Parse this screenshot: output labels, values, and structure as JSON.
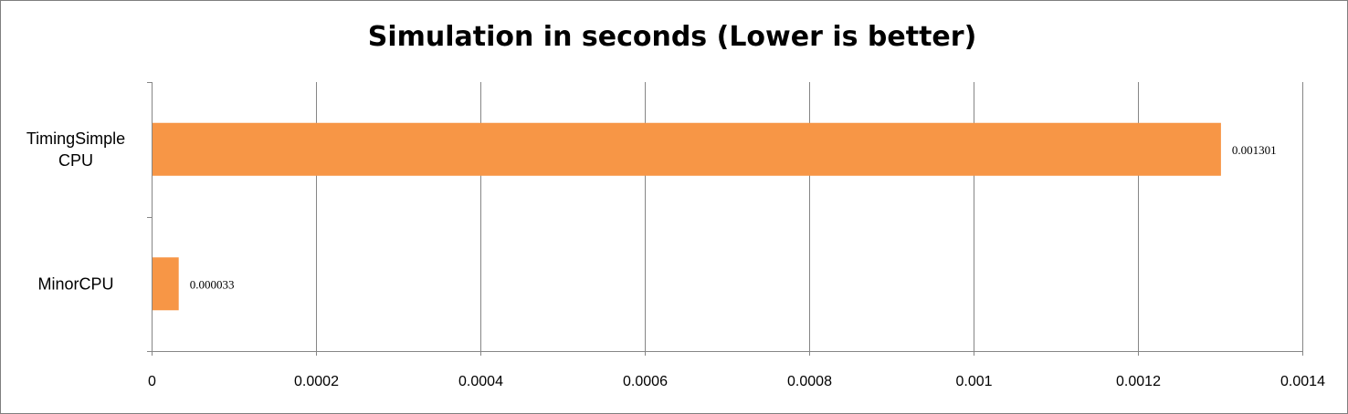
{
  "chart_data": {
    "type": "bar",
    "orientation": "horizontal",
    "title": "Simulation in seconds (Lower is better)",
    "xlabel": "",
    "ylabel": "",
    "categories": [
      [
        "TimingSimple",
        "CPU"
      ],
      [
        "MinorCPU"
      ]
    ],
    "values": [
      0.001301,
      3.3e-05
    ],
    "data_labels": [
      "0.001301",
      "0.000033"
    ],
    "xlim": [
      0,
      0.0014
    ],
    "x_ticks": [
      0,
      0.0002,
      0.0004,
      0.0006,
      0.0008,
      0.001,
      0.0012,
      0.0014
    ],
    "x_tick_labels": [
      "0",
      "0.0002",
      "0.0004",
      "0.0006",
      "0.0008",
      "0.001",
      "0.0012",
      "0.0014"
    ],
    "grid": "vertical major",
    "legend": "none",
    "bar_color": "#f79646",
    "grid_color": "#868686"
  }
}
